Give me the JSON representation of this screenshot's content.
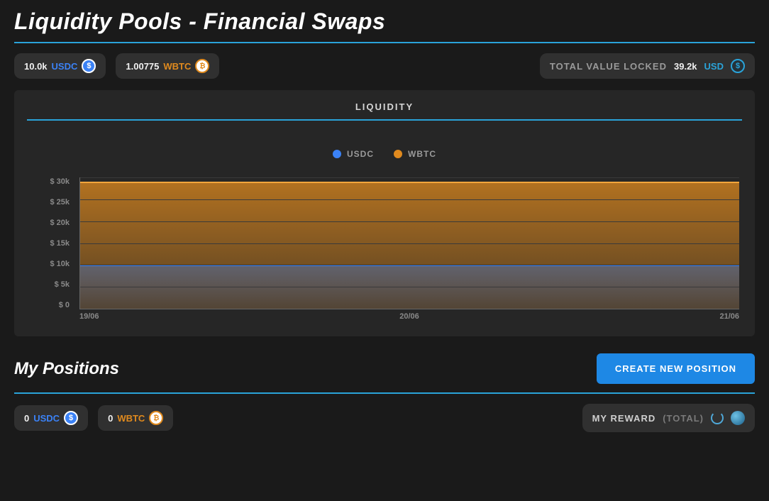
{
  "header": {
    "title": "Liquidity Pools - Financial Swaps",
    "accent_color": "#2aa3d9"
  },
  "balances": {
    "usdc": {
      "amount": "10.0k",
      "symbol": "USDC",
      "symbol_color": "#3b82f6"
    },
    "wbtc": {
      "amount": "1.00775",
      "symbol": "WBTC",
      "symbol_color": "#e08a1e"
    }
  },
  "tvl": {
    "label": "TOTAL VALUE LOCKED",
    "amount": "39.2k",
    "symbol": "USD",
    "symbol_color": "#2aa3d9"
  },
  "liquidity_chart": {
    "title": "LIQUIDITY",
    "type": "area",
    "legend": [
      {
        "label": "USDC",
        "color": "#3b82f6"
      },
      {
        "label": "WBTC",
        "color": "#e08a1e"
      }
    ],
    "y_axis": {
      "min": 0,
      "max": 30,
      "step": 5,
      "prefix": "$ ",
      "suffix": "k",
      "ticks": [
        "$ 30k",
        "$ 25k",
        "$ 20k",
        "$ 15k",
        "$ 10k",
        "$ 5k",
        "$ 0"
      ]
    },
    "x_axis": {
      "ticks": [
        "19/06",
        "20/06",
        "21/06"
      ]
    },
    "series": {
      "wbtc_level_k": 29,
      "usdc_level_k": 10
    },
    "background_color": "#262626",
    "grid_color": "#3a3a3a",
    "axis_color": "#666666"
  },
  "positions": {
    "title": "My Positions",
    "create_label": "CREATE NEW POSITION",
    "usdc": {
      "amount": "0",
      "symbol": "USDC"
    },
    "wbtc": {
      "amount": "0",
      "symbol": "WBTC"
    }
  },
  "reward": {
    "label": "MY REWARD",
    "scope": "(TOTAL)"
  },
  "colors": {
    "page_bg": "#1a1a1a",
    "panel_bg": "#262626",
    "pill_bg": "#303030",
    "text_primary": "#ffffff",
    "text_muted": "#9a9a9a",
    "accent": "#2aa3d9",
    "button_bg": "#1e88e5"
  }
}
